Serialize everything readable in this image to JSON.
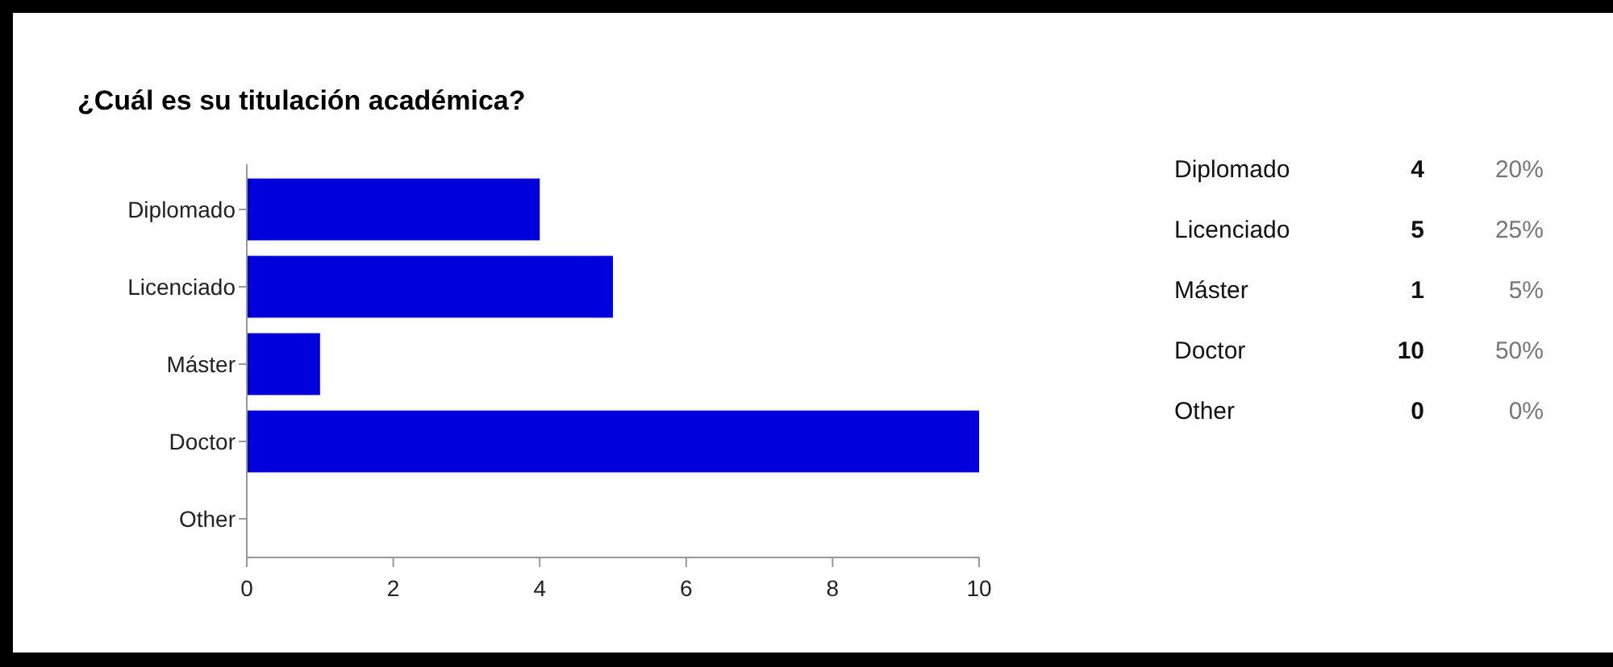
{
  "chart_data": [
    {
      "type": "bar",
      "orientation": "horizontal",
      "title": "¿Cuál es su titulación académica?",
      "categories": [
        "Diplomado",
        "Licenciado",
        "Máster",
        "Doctor",
        "Other"
      ],
      "values": [
        4,
        5,
        1,
        10,
        0
      ],
      "color": "#0000dd",
      "xlim": [
        0,
        10
      ],
      "xticks": [
        0,
        2,
        4,
        6,
        8,
        10
      ],
      "grid": false
    },
    {
      "type": "other",
      "categories": [
        "Diplomado",
        "Licenciado",
        "Máster",
        "Doctor",
        "Other"
      ],
      "annotations": [
        "4",
        "20%",
        "5",
        "25%",
        "1",
        "5%",
        "10",
        "50%",
        "0",
        "0%"
      ]
    }
  ]
}
